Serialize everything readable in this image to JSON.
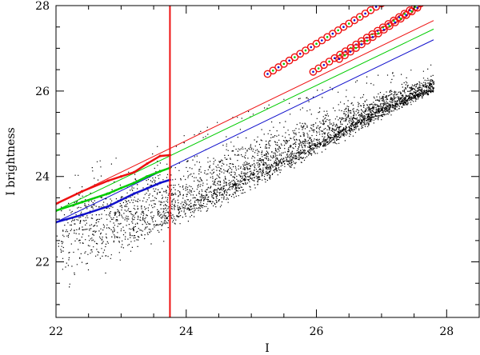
{
  "chart_data": {
    "type": "scatter",
    "xlabel": "I",
    "ylabel": "I brightness",
    "xlim": [
      22,
      28.5
    ],
    "ylim": [
      20.7,
      28
    ],
    "x_ticks": [
      22,
      24,
      26,
      28
    ],
    "y_ticks": [
      22,
      24,
      26,
      28
    ],
    "x_tick_labels": [
      "22",
      "24",
      "26",
      "28"
    ],
    "y_tick_labels": [
      "22",
      "24",
      "26",
      "28"
    ],
    "grid": false,
    "legend": "none",
    "colors": {
      "red": "#ee1111",
      "green": "#00cc00",
      "blue": "#1111cc",
      "points": "#000000"
    },
    "vertical_line": {
      "x": 23.75,
      "color": "#ee1111"
    },
    "reference_lines": [
      {
        "color": "#ee1111",
        "points": [
          [
            22.0,
            23.36
          ],
          [
            27.8,
            27.65
          ]
        ]
      },
      {
        "color": "#00cc00",
        "points": [
          [
            22.0,
            23.2
          ],
          [
            27.8,
            27.45
          ]
        ]
      },
      {
        "color": "#1111cc",
        "points": [
          [
            22.0,
            22.93
          ],
          [
            27.8,
            27.2
          ]
        ]
      }
    ],
    "curves": [
      {
        "color": "#ee1111",
        "points": [
          [
            22.0,
            23.36
          ],
          [
            22.4,
            23.65
          ],
          [
            22.8,
            23.9
          ],
          [
            23.0,
            24.0
          ],
          [
            23.2,
            24.1
          ],
          [
            23.4,
            24.3
          ],
          [
            23.6,
            24.48
          ],
          [
            23.75,
            24.5
          ]
        ]
      },
      {
        "color": "#00cc00",
        "points": [
          [
            22.0,
            23.2
          ],
          [
            22.4,
            23.4
          ],
          [
            22.8,
            23.6
          ],
          [
            23.0,
            23.73
          ],
          [
            23.2,
            23.85
          ],
          [
            23.4,
            24.0
          ],
          [
            23.6,
            24.12
          ],
          [
            23.75,
            24.2
          ]
        ]
      },
      {
        "color": "#1111cc",
        "points": [
          [
            22.0,
            22.93
          ],
          [
            22.4,
            23.1
          ],
          [
            22.8,
            23.3
          ],
          [
            23.0,
            23.45
          ],
          [
            23.2,
            23.6
          ],
          [
            23.4,
            23.72
          ],
          [
            23.6,
            23.85
          ],
          [
            23.75,
            23.92
          ]
        ]
      }
    ],
    "marker_chains": [
      {
        "x_start": 25.25,
        "x_end": 27.0,
        "y_start": 26.4,
        "y_end": 28.05,
        "count": 22
      },
      {
        "x_start": 25.95,
        "x_end": 27.6,
        "y_start": 26.45,
        "y_end": 28.05,
        "count": 21
      },
      {
        "x_start": 26.35,
        "x_end": 27.55,
        "y_start": 26.75,
        "y_end": 27.95,
        "count": 15
      }
    ],
    "scatter_cloud": {
      "count": 9000,
      "x_range": [
        22.0,
        27.8
      ],
      "upper_edge": [
        [
          22.0,
          23.8
        ],
        [
          23.0,
          24.3
        ],
        [
          24.0,
          24.75
        ],
        [
          25.0,
          25.35
        ],
        [
          26.0,
          25.8
        ],
        [
          27.0,
          26.2
        ],
        [
          27.8,
          26.45
        ]
      ],
      "lower_edge": [
        [
          22.0,
          20.8
        ],
        [
          23.0,
          21.7
        ],
        [
          24.0,
          22.8
        ],
        [
          25.0,
          23.6
        ],
        [
          26.0,
          24.45
        ],
        [
          27.0,
          25.3
        ],
        [
          27.8,
          25.95
        ]
      ],
      "density_peak": [
        [
          22.0,
          22.6
        ],
        [
          23.0,
          23.1
        ],
        [
          24.0,
          23.4
        ],
        [
          25.0,
          24.1
        ],
        [
          26.0,
          24.8
        ],
        [
          27.0,
          25.6
        ],
        [
          27.8,
          26.1
        ]
      ]
    }
  }
}
